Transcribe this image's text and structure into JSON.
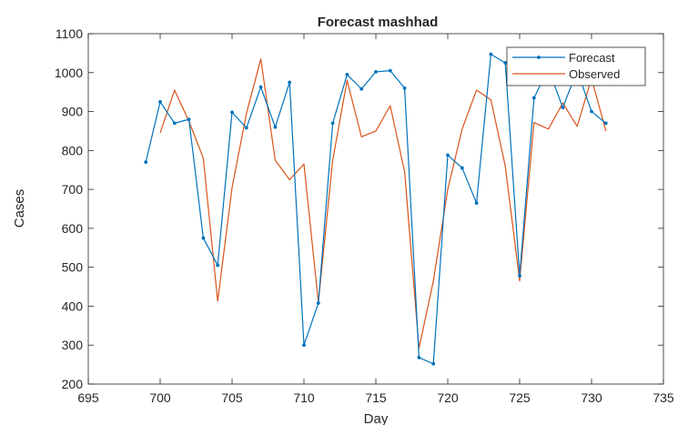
{
  "chart_data": {
    "type": "line",
    "title": "Forecast mashhad",
    "xlabel": "Day",
    "ylabel": "Cases",
    "xlim": [
      695,
      735
    ],
    "ylim": [
      200,
      1100
    ],
    "xticks": [
      695,
      700,
      705,
      710,
      715,
      720,
      725,
      730,
      735
    ],
    "yticks": [
      200,
      300,
      400,
      500,
      600,
      700,
      800,
      900,
      1000,
      1100
    ],
    "grid": false,
    "legend_position": "top-right",
    "colors": {
      "Forecast": "#0072BD",
      "Observed": "#D95319"
    },
    "series": [
      {
        "name": "Forecast",
        "marker": "dot",
        "x": [
          699,
          700,
          701,
          702,
          703,
          704,
          705,
          706,
          707,
          708,
          709,
          710,
          711,
          712,
          713,
          714,
          715,
          716,
          717,
          718,
          719,
          720,
          721,
          722,
          723,
          724,
          725,
          726,
          727,
          728,
          729,
          730,
          731
        ],
        "y": [
          770,
          925,
          870,
          880,
          575,
          505,
          898,
          858,
          963,
          860,
          975,
          300,
          408,
          870,
          995,
          958,
          1002,
          1005,
          960,
          268,
          252,
          788,
          755,
          665,
          1047,
          1025,
          478,
          935,
          1010,
          910,
          1005,
          900,
          870
        ]
      },
      {
        "name": "Observed",
        "marker": "none",
        "x": [
          700,
          701,
          702,
          703,
          704,
          705,
          706,
          707,
          708,
          709,
          710,
          711,
          712,
          713,
          714,
          715,
          716,
          717,
          718,
          719,
          720,
          721,
          722,
          723,
          724,
          725,
          726,
          727,
          728,
          729,
          730,
          731
        ],
        "y": [
          845,
          955,
          875,
          780,
          413,
          705,
          895,
          1035,
          775,
          725,
          765,
          410,
          775,
          980,
          835,
          850,
          915,
          745,
          292,
          465,
          700,
          855,
          955,
          930,
          760,
          465,
          872,
          855,
          922,
          862,
          985,
          850
        ]
      }
    ]
  }
}
